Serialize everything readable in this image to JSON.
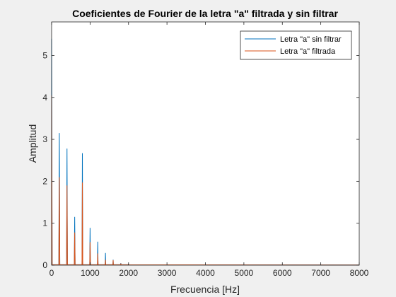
{
  "chart_data": {
    "type": "line",
    "title": "Coeficientes de Fourier de la letra \"a\" filtrada y sin filtrar",
    "xlabel": "Frecuencia [Hz]",
    "ylabel": "Amplitud",
    "xlim": [
      0,
      8000
    ],
    "ylim": [
      0,
      5.8
    ],
    "xticks": [
      0,
      1000,
      2000,
      3000,
      4000,
      5000,
      6000,
      7000,
      8000
    ],
    "yticks": [
      0,
      1,
      2,
      3,
      4,
      5
    ],
    "grid": false,
    "legend_position": "top-right",
    "series": [
      {
        "name": "Letra \"a\" sin filtrar",
        "color": "#0072BD",
        "peaks": [
          {
            "x": 0,
            "y": 5.4
          },
          {
            "x": 200,
            "y": 3.15
          },
          {
            "x": 400,
            "y": 2.78
          },
          {
            "x": 600,
            "y": 1.15
          },
          {
            "x": 800,
            "y": 2.67
          },
          {
            "x": 1000,
            "y": 0.89
          },
          {
            "x": 1200,
            "y": 0.56
          },
          {
            "x": 1400,
            "y": 0.29
          },
          {
            "x": 1600,
            "y": 0.13
          },
          {
            "x": 1800,
            "y": 0.05
          },
          {
            "x": 2000,
            "y": 0.03
          }
        ]
      },
      {
        "name": "Letra \"a\" filtrada",
        "color": "#D95319",
        "peaks": [
          {
            "x": 0,
            "y": 4.05
          },
          {
            "x": 200,
            "y": 2.1
          },
          {
            "x": 400,
            "y": 1.9
          },
          {
            "x": 600,
            "y": 0.78
          },
          {
            "x": 800,
            "y": 1.97
          },
          {
            "x": 1000,
            "y": 0.55
          },
          {
            "x": 1200,
            "y": 0.28
          },
          {
            "x": 1400,
            "y": 0.13
          },
          {
            "x": 1600,
            "y": 0.12
          },
          {
            "x": 1800,
            "y": 0.04
          },
          {
            "x": 2000,
            "y": 0.02
          }
        ]
      }
    ]
  }
}
